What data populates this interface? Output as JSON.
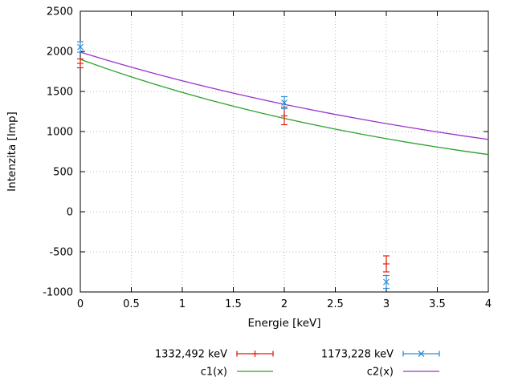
{
  "chart_data": {
    "type": "line",
    "title": "",
    "xlabel": "Energie [keV]",
    "ylabel": "Intenzita [Imp]",
    "xlim": [
      0,
      4
    ],
    "ylim": [
      -1000,
      2500
    ],
    "xticks": [
      0,
      0.5,
      1,
      1.5,
      2,
      2.5,
      3,
      3.5,
      4
    ],
    "xtick_labels": [
      "0",
      "0.5",
      "1",
      "1.5",
      "2",
      "2.5",
      "3",
      "3.5",
      "4"
    ],
    "yticks": [
      -1000,
      -500,
      0,
      500,
      1000,
      1500,
      2000,
      2500
    ],
    "ytick_labels": [
      "-1000",
      "-500",
      "0",
      "500",
      "1000",
      "1500",
      "2000",
      "2500"
    ],
    "grid": "dotted",
    "grid_color": "#b8b8b8",
    "border_color": "#000000",
    "legend_position": "below",
    "legend_rows": [
      [
        "1332,492 keV",
        "1173,228 keV"
      ],
      [
        "c1(x)",
        "c2(x)"
      ]
    ],
    "series": [
      {
        "name": "1332,492 keV",
        "type": "errorbars",
        "marker": "plus",
        "color": "#e51e10",
        "points": [
          {
            "x": 0,
            "y": 1850,
            "err": 55
          },
          {
            "x": 2,
            "y": 1195,
            "err": 110
          },
          {
            "x": 3,
            "y": -650,
            "err": 100
          }
        ]
      },
      {
        "name": "1173,228 keV",
        "type": "errorbars",
        "marker": "cross",
        "color": "#2b8fd8",
        "points": [
          {
            "x": 0,
            "y": 2055,
            "err": 65
          },
          {
            "x": 2,
            "y": 1360,
            "err": 75
          },
          {
            "x": 3,
            "y": -875,
            "err": 80
          }
        ]
      },
      {
        "name": "c1(x)",
        "type": "line",
        "color": "#2aa22a",
        "x": [
          0,
          0.25,
          0.5,
          0.75,
          1,
          1.25,
          1.5,
          1.75,
          2,
          2.25,
          2.5,
          2.75,
          3,
          3.25,
          3.5,
          3.75,
          4
        ],
        "y": [
          1900,
          1787,
          1681,
          1581,
          1487,
          1399,
          1316,
          1238,
          1164,
          1095,
          1030,
          969,
          911,
          857,
          806,
          758,
          713
        ]
      },
      {
        "name": "c2(x)",
        "type": "line",
        "color": "#9932cc",
        "x": [
          0,
          0.25,
          0.5,
          0.75,
          1,
          1.25,
          1.5,
          1.75,
          2,
          2.25,
          2.5,
          2.75,
          3,
          3.25,
          3.5,
          3.75,
          4
        ],
        "y": [
          1990,
          1894,
          1802,
          1715,
          1633,
          1554,
          1479,
          1407,
          1339,
          1275,
          1213,
          1155,
          1099,
          1046,
          995,
          947,
          901
        ]
      }
    ]
  }
}
